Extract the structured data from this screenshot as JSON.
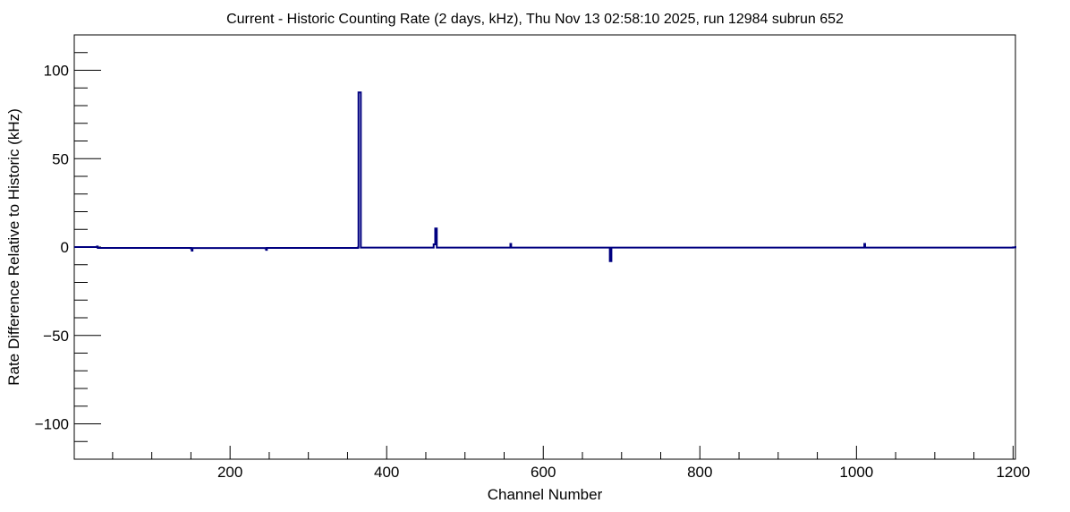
{
  "chart_data": {
    "type": "line",
    "title": "Current - Historic Counting Rate (2 days, kHz), Thu Nov 13 02:58:10 2025, run 12984 subrun 652",
    "xlabel": "Channel Number",
    "ylabel": "Rate Difference Relative to Historic (kHz)",
    "xlim": [
      1,
      1203
    ],
    "ylim": [
      -120,
      120
    ],
    "x_ticks": [
      200,
      400,
      600,
      800,
      1000,
      1200
    ],
    "y_ticks": [
      -100,
      -50,
      0,
      50,
      100
    ],
    "x_tick_labels": [
      "200",
      "400",
      "600",
      "800",
      "1000",
      "1200"
    ],
    "y_tick_labels": [
      "−100",
      "−50",
      "0",
      "50",
      "100"
    ],
    "color": "#000080",
    "series": [
      {
        "baseline": -0.3,
        "points": [
          [
            1,
            0.0
          ],
          [
            30,
            0.3
          ],
          [
            31,
            -0.5
          ],
          [
            150,
            -0.8
          ],
          [
            151,
            -2.0
          ],
          [
            152,
            -0.6
          ],
          [
            245,
            -0.7
          ],
          [
            246,
            -1.6
          ],
          [
            247,
            -0.5
          ],
          [
            363,
            -0.3
          ],
          [
            364,
            87.5
          ],
          [
            366,
            87.5
          ],
          [
            367,
            -0.3
          ],
          [
            460,
            1.5
          ],
          [
            462,
            10.5
          ],
          [
            463,
            10.5
          ],
          [
            464,
            -0.3
          ],
          [
            558,
            1.8
          ],
          [
            559,
            -0.3
          ],
          [
            684,
            -0.3
          ],
          [
            685,
            -8.0
          ],
          [
            686,
            -8.0
          ],
          [
            687,
            -0.3
          ],
          [
            1010,
            1.8
          ],
          [
            1011,
            -0.3
          ],
          [
            1200,
            -0.2
          ],
          [
            1203,
            0.5
          ]
        ]
      }
    ]
  }
}
